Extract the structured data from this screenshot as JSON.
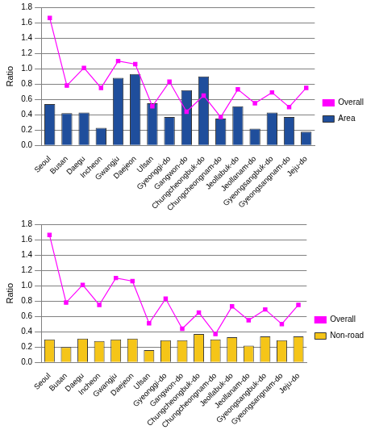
{
  "chart_data": [
    {
      "type": "bar",
      "categories": [
        "Seoul",
        "Busan",
        "Daegu",
        "Incheon",
        "Gwangju",
        "Daejeon",
        "Ulsan",
        "Gyeonggi-do",
        "Gangwon-do",
        "Chungcheongbuk-do",
        "Chungcheongnam-do",
        "Jeollabuk-do",
        "Jeollanam-do",
        "Gyeongsangbuk-do",
        "Gyeongsangnam-do",
        "Jeju-do"
      ],
      "series": [
        {
          "name": "Area",
          "type": "bar",
          "color": "#1f4e9c",
          "values": [
            0.54,
            0.42,
            0.43,
            0.23,
            0.88,
            0.93,
            0.55,
            0.37,
            0.72,
            0.9,
            0.35,
            0.51,
            0.22,
            0.43,
            0.37,
            0.18
          ]
        },
        {
          "name": "Overall",
          "type": "line",
          "color": "#ff00ff",
          "marker": "square",
          "values": [
            1.66,
            0.78,
            1.01,
            0.75,
            1.1,
            1.06,
            0.51,
            0.83,
            0.44,
            0.65,
            0.37,
            0.73,
            0.55,
            0.69,
            0.5,
            0.75
          ]
        }
      ],
      "y_label": "Ratio",
      "ylim": [
        0,
        1.8
      ],
      "yticks": [
        {
          "value": 0,
          "label": "0.0"
        },
        {
          "value": 0.2,
          "label": "0.2"
        },
        {
          "value": 0.4,
          "label": "0.4"
        },
        {
          "value": 0.6,
          "label": "0.6"
        },
        {
          "value": 0.8,
          "label": "0.8"
        },
        {
          "value": 1,
          "label": "1.0"
        },
        {
          "value": 1.2,
          "label": "1.2"
        },
        {
          "value": 1.4,
          "label": "1.4"
        },
        {
          "value": 1.6,
          "label": "1.6"
        },
        {
          "value": 1.8,
          "label": "1.8"
        }
      ],
      "grid": true,
      "legend": "right"
    },
    {
      "type": "bar",
      "categories": [
        "Seoul",
        "Busan",
        "Daegu",
        "Incheon",
        "Gwangju",
        "Daejeon",
        "Ulsan",
        "Gyeonggi-do",
        "Gangwon-do",
        "Chungcheongbuk-do",
        "Chungcheongnam-do",
        "Jeollabuk-do",
        "Jeollanam-do",
        "Gyeongsangbuk-do",
        "Gyeongsangnam-do",
        "Jeju-do"
      ],
      "series": [
        {
          "name": "Non-road",
          "type": "bar",
          "color": "#f5c518",
          "values": [
            0.3,
            0.2,
            0.31,
            0.28,
            0.3,
            0.31,
            0.16,
            0.29,
            0.29,
            0.37,
            0.3,
            0.33,
            0.22,
            0.34,
            0.29,
            0.34
          ]
        },
        {
          "name": "Overall",
          "type": "line",
          "color": "#ff00ff",
          "marker": "square",
          "values": [
            1.66,
            0.78,
            1.01,
            0.75,
            1.1,
            1.06,
            0.51,
            0.83,
            0.44,
            0.65,
            0.37,
            0.73,
            0.55,
            0.69,
            0.5,
            0.75
          ]
        }
      ],
      "y_label": "Ratio",
      "ylim": [
        0,
        1.8
      ],
      "yticks": [
        {
          "value": 0,
          "label": "0.0"
        },
        {
          "value": 0.2,
          "label": "0.2"
        },
        {
          "value": 0.4,
          "label": "0.4"
        },
        {
          "value": 0.6,
          "label": "0.6"
        },
        {
          "value": 0.8,
          "label": "0.8"
        },
        {
          "value": 1,
          "label": "1.0"
        },
        {
          "value": 1.2,
          "label": "1.2"
        },
        {
          "value": 1.4,
          "label": "1.4"
        },
        {
          "value": 1.6,
          "label": "1.6"
        },
        {
          "value": 1.8,
          "label": "1.8"
        }
      ],
      "grid": true,
      "legend": "right"
    }
  ]
}
